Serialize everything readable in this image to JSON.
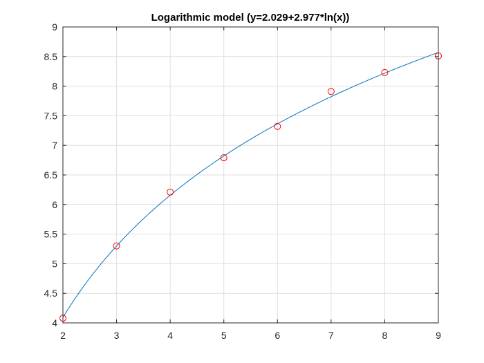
{
  "chart_data": {
    "type": "scatter",
    "title": "Logarithmic model (y=2.029+2.977*ln(x))",
    "xlabel": "",
    "ylabel": "",
    "xlim": [
      2,
      9
    ],
    "ylim": [
      4,
      9
    ],
    "xticks": [
      2,
      3,
      4,
      5,
      6,
      7,
      8,
      9
    ],
    "yticks": [
      4,
      4.5,
      5,
      5.5,
      6,
      6.5,
      7,
      7.5,
      8,
      8.5,
      9
    ],
    "xtick_labels": [
      "2",
      "3",
      "4",
      "5",
      "6",
      "7",
      "8",
      "9"
    ],
    "ytick_labels": [
      "4",
      "4.5",
      "5",
      "5.5",
      "6",
      "6.5",
      "7",
      "7.5",
      "8",
      "8.5",
      "9"
    ],
    "grid": true,
    "series": [
      {
        "name": "data",
        "kind": "markers",
        "marker": "circle",
        "color": "#ff0000",
        "x": [
          2,
          3,
          4,
          5,
          6,
          7,
          8,
          9
        ],
        "y": [
          4.08,
          5.3,
          6.21,
          6.79,
          7.32,
          7.91,
          8.23,
          8.51
        ]
      },
      {
        "name": "fit",
        "kind": "line",
        "color": "#0072bd",
        "model": {
          "a": 2.029,
          "b": 2.977,
          "form": "a + b*ln(x)"
        }
      }
    ]
  }
}
